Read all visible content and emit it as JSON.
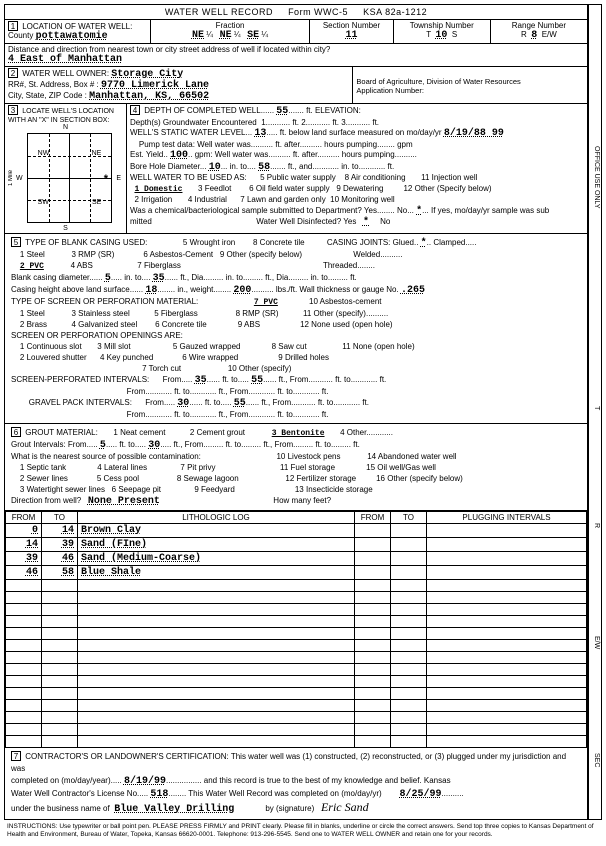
{
  "form": {
    "title": "WATER WELL RECORD",
    "form_no": "Form WWC-5",
    "ksa": "KSA 82a-1212"
  },
  "sec1": {
    "heading": "LOCATION OF WATER WELL:",
    "county_label": "County",
    "county": "pottawatomie",
    "fraction_label": "Fraction",
    "f1": "NE",
    "q1": "¼",
    "f2": "NE",
    "q2": "¼",
    "f3": "SE",
    "q3": "¼",
    "section_label": "Section Number",
    "section": "11",
    "township_label": "Township Number",
    "township": "10",
    "township_dir": "S",
    "range_label": "Range Number",
    "range": "8",
    "range_dir": "E/W",
    "dist_label": "Distance and direction from nearest town or city street address of well if located within city?",
    "dist": "4 East of Manhattan"
  },
  "sec2": {
    "heading": "WATER WELL OWNER:",
    "owner": "Storage City",
    "addr_label": "RR#, St. Address, Box #  :",
    "addr": "9770 Limerick Lane",
    "city_label": "City, State, ZIP Code    :",
    "city": "Manhattan, KS, 66502",
    "board": "Board of Agriculture, Division of Water Resources",
    "app_label": "Application Number:"
  },
  "sec3": {
    "heading": "LOCATE WELL'S LOCATION WITH AN \"X\" IN SECTION BOX:",
    "n": "N",
    "s": "S",
    "e": "E",
    "w": "W",
    "nw": "NW",
    "ne": "NE",
    "sw": "SW",
    "se": "SE",
    "mile": "1 Mile",
    "mark": "*"
  },
  "sec4": {
    "heading": "DEPTH OF COMPLETED WELL",
    "depth": "55",
    "elev_label": "ft. ELEVATION:",
    "gw_label": "Depth(s) Groundwater Encountered",
    "gw1": "1.",
    "gw2": "ft. 2.",
    "gw3": "ft. 3.",
    "gwend": "ft.",
    "swl_label": "WELL'S STATIC WATER LEVEL",
    "swl": "13",
    "swl_suffix": "ft. below land surface measured on mo/day/yr",
    "swl_date": "8/19/88 99",
    "pump_label": "Pump test data:   Well water was",
    "pump_after": "ft. after",
    "pump_hrs": "hours pumping",
    "pump_gpm": "gpm",
    "yield_label": "Est. Yield",
    "yield": "100",
    "yield_unit": "gpm:   Well water was",
    "bore_label": "Bore Hole Diameter",
    "bore1": "10",
    "bore_in": "in. to",
    "bore2": "58",
    "bore_ft": "ft., and",
    "bore_into": "in. to",
    "bore_ftend": "ft.",
    "use_label": "WELL WATER TO BE USED AS:",
    "u1": "1 Domestic",
    "u2": "2 Irrigation",
    "u3": "3 Feedlot",
    "u4": "4 Industrial",
    "u5": "5 Public water supply",
    "u6": "6 Oil field water supply",
    "u7": "7 Lawn and garden only",
    "u8": "8 Air conditioning",
    "u9": "9 Dewatering",
    "u10": "10 Monitoring well",
    "u11": "11 Injection well",
    "u12": "12 Other (Specify below)",
    "chem_label": "Was a chemical/bacteriological sample submitted to Department? Yes",
    "chem_no": "No",
    "chem_star": "*",
    "chem_if": "If yes, mo/day/yr sample was sub",
    "mitted": "mitted",
    "disinfect": "Water Well Disinfected?  Yes",
    "dis_star": "*",
    "dis_no": "No"
  },
  "sec5": {
    "heading": "TYPE OF BLANK CASING USED:",
    "c1": "1 Steel",
    "c2": "2 PVC",
    "c3": "3 RMP (SR)",
    "c4": "4 ABS",
    "c5": "5 Wrought iron",
    "c6": "6 Asbestos-Cement",
    "c7": "7 Fiberglass",
    "c8": "8 Concrete tile",
    "c9": "9 Other (specify below)",
    "joints_label": "CASING JOINTS: Glued",
    "j_star": "*",
    "j_clamped": "Clamped",
    "j_welded": "Welded",
    "j_threaded": "Threaded",
    "bcd_label": "Blank casing diameter",
    "bcd": "5",
    "bcd_in": "in. to",
    "bcd_to": "35",
    "bcd_ftdia": "ft., Dia",
    "bcd_into2": "in. to",
    "bcd_ftdia2": "ft., Dia",
    "bcd_into3": "in. to",
    "bcd_ft": "ft.",
    "chl_label": "Casing height above land surface",
    "chl": "18",
    "chl_in": "in., weight",
    "chl_wt": "200",
    "chl_lbs": "lbs./ft. Wall thickness or gauge No.",
    "chl_gauge": ".265",
    "screen_label": "TYPE OF SCREEN OR PERFORATION MATERIAL:",
    "s1": "1 Steel",
    "s2": "2 Brass",
    "s3": "3 Stainless steel",
    "s4": "4 Galvanized steel",
    "s5": "5 Fiberglass",
    "s6": "6 Concrete tile",
    "s7": "7 PVC",
    "s8": "8 RMP (SR)",
    "s9": "9 ABS",
    "s10": "10 Asbestos-cement",
    "s11": "11 Other (specify)",
    "s12": "12 None used (open hole)",
    "open_label": "SCREEN OR PERFORATION OPENINGS ARE:",
    "o1": "1 Continuous slot",
    "o2": "2 Louvered shutter",
    "o3": "3 Mill slot",
    "o4": "4 Key punched",
    "o5": "5 Gauzed wrapped",
    "o6": "6 Wire wrapped",
    "o7": "7 Torch cut",
    "o8": "8 Saw cut",
    "o9": "9 Drilled holes",
    "o10": "10 Other (specify)",
    "o11": "11 None (open hole)",
    "spi_label": "SCREEN-PERFORATED INTERVALS:",
    "spi_from": "From",
    "spi_to": "ft. to",
    "spi_ftfrom": "ft., From",
    "spi_fto": "ft. to",
    "spi_ft": "ft.",
    "spi_v1": "35",
    "spi_v2": "55",
    "gpi_label": "GRAVEL PACK INTERVALS:",
    "gpi_v1": "30",
    "gpi_v2": "55"
  },
  "sec6": {
    "heading": "GROUT MATERIAL:",
    "g1": "1 Neat cement",
    "g2": "2 Cement grout",
    "g3": "3 Bentonite",
    "g4": "4 Other",
    "gi_label": "Grout Intervals:    From",
    "gi_v1": "5",
    "gi_to": "ft. to",
    "gi_v2": "30",
    "gi_ft": "ft., From",
    "gi_fto2": "ft. to",
    "gi_ft2": "ft., From",
    "gi_fto3": "ft. to",
    "gi_ft3": "ft.",
    "contam_label": "What is the nearest source of possible contamination:",
    "p1": "1 Septic tank",
    "p2": "2 Sewer lines",
    "p3": "3 Watertight sewer lines",
    "p4": "4 Lateral lines",
    "p5": "5 Cess pool",
    "p6": "6 Seepage pit",
    "p7": "7 Pit privy",
    "p8": "8 Sewage lagoon",
    "p9": "9 Feedyard",
    "p10": "10 Livestock pens",
    "p11": "11 Fuel storage",
    "p12": "12 Fertilizer storage",
    "p13": "13 Insecticide storage",
    "p14": "14 Abandoned water well",
    "p15": "15 Oil well/Gas well",
    "p16": "16 Other (specify below)",
    "dir_label": "Direction from well?",
    "dir": "None Present",
    "howmany": "How many feet?"
  },
  "log": {
    "h_from": "FROM",
    "h_to": "TO",
    "h_lith": "LITHOLOGIC LOG",
    "h_from2": "FROM",
    "h_to2": "TO",
    "h_plug": "PLUGGING INTERVALS",
    "rows": [
      {
        "from": "0",
        "to": "14",
        "lith": "Brown Clay"
      },
      {
        "from": "14",
        "to": "39",
        "lith": "Sand (FIne)"
      },
      {
        "from": "39",
        "to": "46",
        "lith": "Sand (Medium-Coarse)"
      },
      {
        "from": "46",
        "to": "58",
        "lith": "Blue Shale"
      }
    ],
    "blank_rows": 14
  },
  "sec7": {
    "cert": "CONTRACTOR'S OR LANDOWNER'S CERTIFICATION: This water well was (1) constructed, (2) reconstructed, or (3) plugged under my jurisdiction and was",
    "comp_label": "completed on (mo/day/year)",
    "comp_date": "8/19/99",
    "true_label": "and this record is true to the best of my knowledge and belief. Kansas",
    "lic_label": "Water Well Contractor's License No.",
    "lic": "518",
    "rec_label": "This Water Well Record was completed on (mo/day/yr)",
    "rec_date": "8/25/99",
    "biz_label": "under the business name of",
    "biz": "Blue Valley Drilling",
    "sig_label": "by (signature)",
    "sig": "Eric Sand"
  },
  "side": {
    "office": "OFFICE USE ONLY",
    "t": "T",
    "r": "R",
    "ew": "E/W",
    "sec": "SEC"
  },
  "instructions": "INSTRUCTIONS: Use typewriter or ball point pen. PLEASE PRESS FIRMLY and PRINT clearly. Please fill in blanks, underline or circle the correct answers. Send top three copies to Kansas Department of Health and Environment, Bureau of Water, Topeka, Kansas 66620-0001. Telephone: 913-296-5545. Send one to WATER WELL OWNER and retain one for your records."
}
